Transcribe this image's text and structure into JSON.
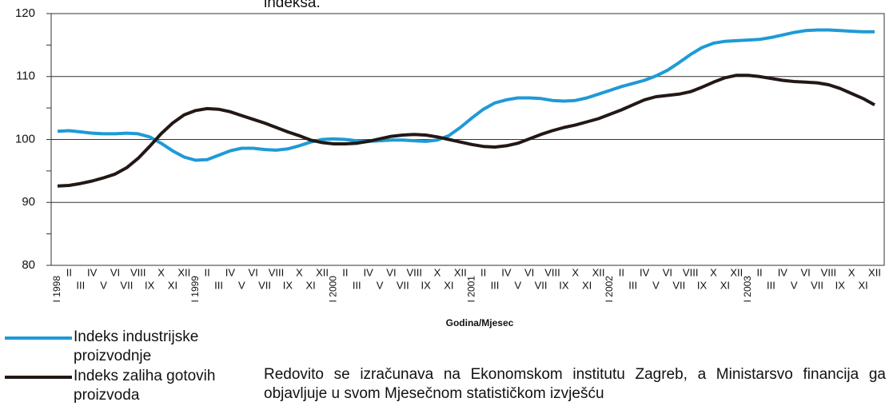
{
  "chart_data": {
    "type": "line",
    "title": "indeksa.",
    "xlabel": "Godina/Mjesec",
    "note": "Redovito se izračunava na Ekonomskom institutu Zagreb, a Ministarsvo financija ga objavljuje u svom Mjesečnom statističkom izvješću",
    "categories": [
      "I 1998",
      "II",
      "III",
      "IV",
      "V",
      "VI",
      "VII",
      "VIII",
      "IX",
      "X",
      "XI",
      "XII",
      "I 1999",
      "II",
      "III",
      "IV",
      "V",
      "VI",
      "VII",
      "VIII",
      "IX",
      "X",
      "XI",
      "XII",
      "I 2000",
      "II",
      "III",
      "IV",
      "V",
      "VI",
      "VII",
      "VIII",
      "IX",
      "X",
      "XI",
      "XII",
      "I 2001",
      "II",
      "III",
      "IV",
      "V",
      "VI",
      "VII",
      "VIII",
      "IX",
      "X",
      "XI",
      "XII",
      "I 2002",
      "II",
      "III",
      "IV",
      "V",
      "VI",
      "VII",
      "VIII",
      "IX",
      "X",
      "XI",
      "XII",
      "I 2003",
      "II",
      "III",
      "IV",
      "V",
      "VI",
      "VII",
      "VIII",
      "IX",
      "X",
      "XI",
      "XII"
    ],
    "series": [
      {
        "name": "Indeks industrijske proizvodnje",
        "color": "#1f9ad6",
        "values": [
          101.3,
          101.4,
          101.2,
          101.0,
          100.9,
          100.9,
          101.0,
          100.9,
          100.4,
          99.4,
          98.2,
          97.2,
          96.7,
          96.8,
          97.5,
          98.2,
          98.6,
          98.6,
          98.4,
          98.3,
          98.5,
          99.0,
          99.6,
          100.0,
          100.1,
          100.0,
          99.8,
          99.7,
          99.8,
          99.9,
          99.9,
          99.8,
          99.7,
          99.9,
          100.6,
          101.9,
          103.4,
          104.8,
          105.8,
          106.3,
          106.6,
          106.6,
          106.5,
          106.2,
          106.1,
          106.2,
          106.6,
          107.2,
          107.8,
          108.4,
          108.9,
          109.4,
          110.1,
          111.0,
          112.2,
          113.5,
          114.6,
          115.3,
          115.6,
          115.7,
          115.8,
          115.9,
          116.2,
          116.6,
          117.0,
          117.3,
          117.4,
          117.4,
          117.3,
          117.2,
          117.1,
          117.1
        ]
      },
      {
        "name": "Indeks zaliha gotovih proizvoda",
        "color": "#231815",
        "values": [
          92.6,
          92.7,
          93.0,
          93.4,
          93.9,
          94.5,
          95.5,
          97.0,
          98.9,
          100.9,
          102.6,
          103.9,
          104.6,
          104.9,
          104.8,
          104.4,
          103.8,
          103.2,
          102.6,
          101.9,
          101.2,
          100.6,
          99.9,
          99.5,
          99.3,
          99.3,
          99.4,
          99.7,
          100.1,
          100.5,
          100.7,
          100.8,
          100.7,
          100.4,
          100.0,
          99.6,
          99.2,
          98.9,
          98.8,
          99.0,
          99.4,
          100.1,
          100.8,
          101.4,
          101.9,
          102.3,
          102.8,
          103.3,
          104.0,
          104.7,
          105.5,
          106.3,
          106.8,
          107.0,
          107.2,
          107.6,
          108.3,
          109.1,
          109.8,
          110.2,
          110.2,
          110.0,
          109.7,
          109.4,
          109.2,
          109.1,
          109.0,
          108.7,
          108.1,
          107.3,
          106.5,
          105.5
        ]
      }
    ],
    "ylim": [
      80,
      120
    ],
    "yticks": [
      80,
      90,
      100,
      110,
      120
    ],
    "yminor_ticks": [
      85,
      95,
      105,
      115
    ],
    "grid": true
  }
}
